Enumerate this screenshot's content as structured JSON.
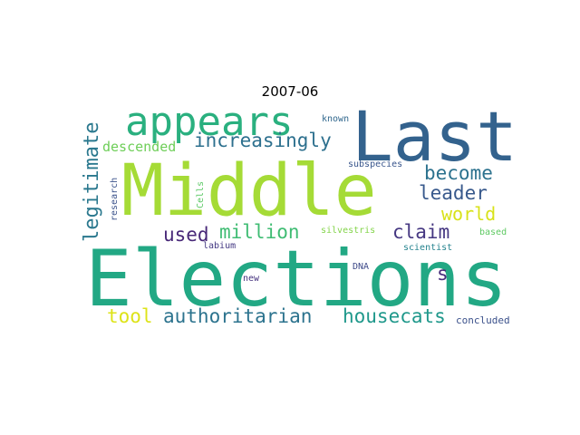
{
  "title": "2007-06",
  "words": {
    "elections": {
      "text": "Elections",
      "color": "#22a884"
    },
    "middle": {
      "text": "Middle",
      "color": "#a5db36"
    },
    "last": {
      "text": "Last",
      "color": "#33628d"
    },
    "appears": {
      "text": "appears",
      "color": "#2ab07f"
    },
    "increasingly": {
      "text": "increasingly",
      "color": "#2d708e"
    },
    "descended": {
      "text": "descended",
      "color": "#6ece58"
    },
    "legitimate": {
      "text": "legitimate",
      "color": "#2a788e"
    },
    "become": {
      "text": "become",
      "color": "#2c728e"
    },
    "leader": {
      "text": "leader",
      "color": "#38598c"
    },
    "world": {
      "text": "world",
      "color": "#d8e219"
    },
    "claim": {
      "text": "claim",
      "color": "#453781"
    },
    "million": {
      "text": "million",
      "color": "#3fbc73"
    },
    "used": {
      "text": "used",
      "color": "#482878"
    },
    "s": {
      "text": "s",
      "color": "#472d7b"
    },
    "tool": {
      "text": "tool",
      "color": "#dde318"
    },
    "authoritarian": {
      "text": "authoritarian",
      "color": "#2c738e"
    },
    "housecats": {
      "text": "housecats",
      "color": "#1f988b"
    },
    "known": {
      "text": "known",
      "color": "#31688e"
    },
    "subspecies": {
      "text": "subspecies",
      "color": "#39568c"
    },
    "cells": {
      "text": "Cells",
      "color": "#5ac864"
    },
    "research": {
      "text": "research",
      "color": "#3b528b"
    },
    "silvestris": {
      "text": "silvestris",
      "color": "#84d44b"
    },
    "labium": {
      "text": "labium",
      "color": "#443983"
    },
    "based": {
      "text": "based",
      "color": "#5ec962"
    },
    "scientist": {
      "text": "scientist",
      "color": "#25838e"
    },
    "dna": {
      "text": "DNA",
      "color": "#3e4a89"
    },
    "new": {
      "text": "new",
      "color": "#46337f"
    },
    "concluded": {
      "text": "concluded",
      "color": "#3b518b"
    }
  }
}
